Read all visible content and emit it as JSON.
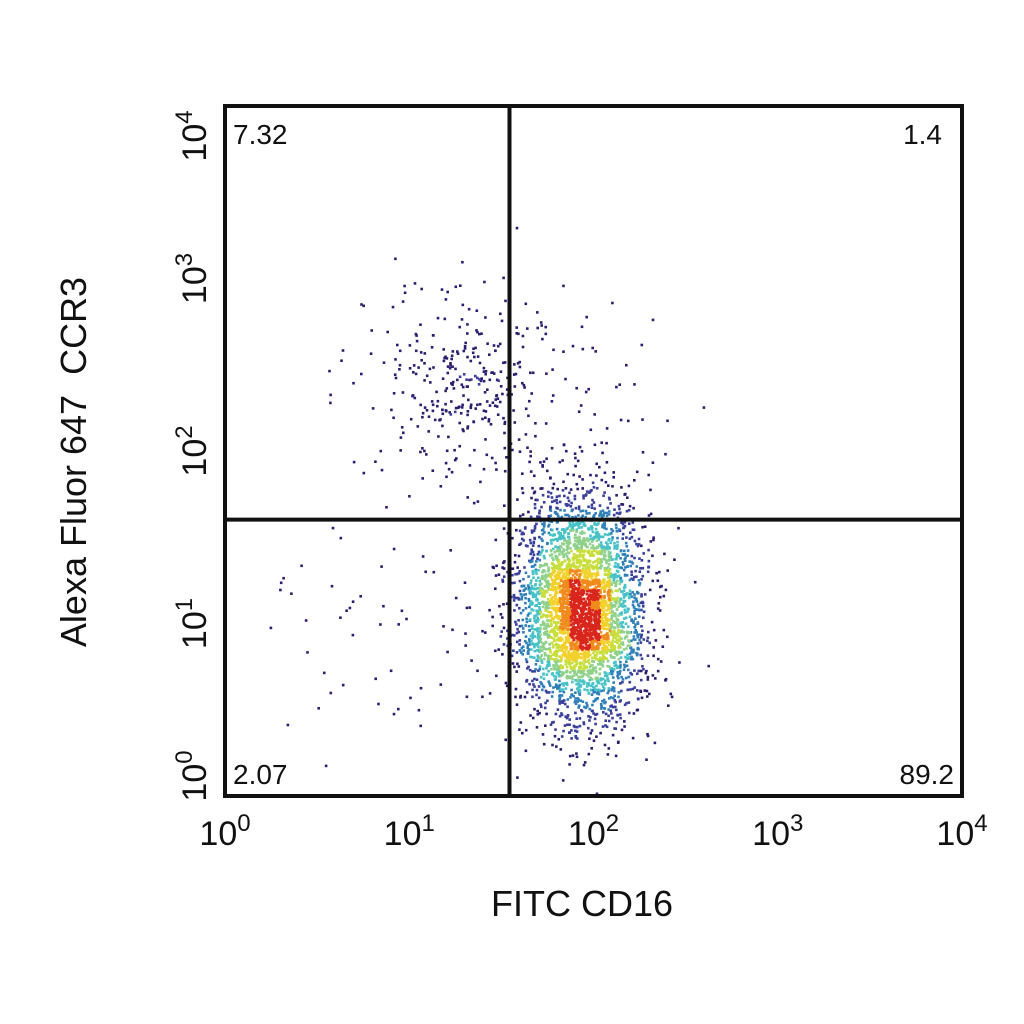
{
  "chart_data": {
    "type": "scatter",
    "subtype": "flow-cytometry density dot plot with quadrant gates",
    "xlabel": "FITC CD16",
    "ylabel": "Alexa Fluor 647  CCR3",
    "xscale": "log",
    "yscale": "log",
    "xlim": [
      1,
      10000
    ],
    "ylim": [
      1,
      10000
    ],
    "x_ticks": [
      {
        "value": 1,
        "base": "10",
        "exp": "0"
      },
      {
        "value": 10,
        "base": "10",
        "exp": "1"
      },
      {
        "value": 100,
        "base": "10",
        "exp": "2"
      },
      {
        "value": 1000,
        "base": "10",
        "exp": "3"
      },
      {
        "value": 10000,
        "base": "10",
        "exp": "4"
      }
    ],
    "y_ticks": [
      {
        "value": 1,
        "base": "10",
        "exp": "0"
      },
      {
        "value": 10,
        "base": "10",
        "exp": "1"
      },
      {
        "value": 100,
        "base": "10",
        "exp": "2"
      },
      {
        "value": 1000,
        "base": "10",
        "exp": "3"
      },
      {
        "value": 10000,
        "base": "10",
        "exp": "4"
      }
    ],
    "quadrant_gate": {
      "x": 35,
      "y": 40
    },
    "quadrant_percentages": {
      "upper_left": "7.32",
      "upper_right": "1.4",
      "lower_left": "2.07",
      "lower_right": "89.2"
    },
    "populations": [
      {
        "center_x": 85,
        "center_y": 12,
        "spread_log_x": 0.17,
        "spread_log_y": 0.32,
        "fraction": 0.892
      },
      {
        "center_x": 20,
        "center_y": 250,
        "spread_log_x": 0.25,
        "spread_log_y": 0.3,
        "fraction": 0.073
      },
      {
        "center_x": 60,
        "center_y": 200,
        "spread_log_x": 0.25,
        "spread_log_y": 0.3,
        "fraction": 0.014
      },
      {
        "center_x": 12,
        "center_y": 8,
        "spread_log_x": 0.45,
        "spread_log_y": 0.45,
        "fraction": 0.021
      }
    ],
    "density_colors": [
      "#2d1d6e",
      "#3a3f9a",
      "#2f7fb8",
      "#47c2c7",
      "#8fd18a",
      "#c8de3c",
      "#f2d12b",
      "#f08a1c",
      "#d9261c"
    ],
    "grid": false,
    "legend": "none"
  }
}
